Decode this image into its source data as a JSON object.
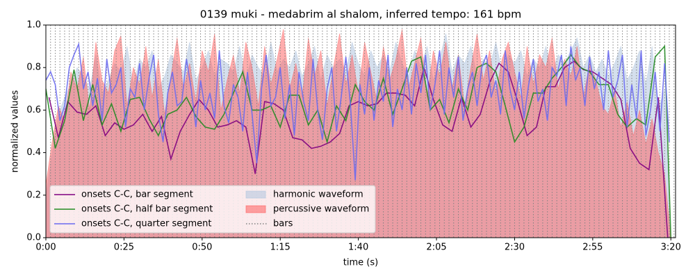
{
  "chart_data": {
    "type": "line",
    "title": "0139 muki - medabrim al shalom, inferred tempo: 161 bpm",
    "xlabel": "time (s)",
    "ylabel": "normalized values",
    "xlim": [
      0,
      201.5
    ],
    "ylim": [
      0,
      1
    ],
    "xticks": [
      {
        "value": 0,
        "label": "0:00"
      },
      {
        "value": 25,
        "label": "0:25"
      },
      {
        "value": 50,
        "label": "0:50"
      },
      {
        "value": 75,
        "label": "1:15"
      },
      {
        "value": 100,
        "label": "1:40"
      },
      {
        "value": 125,
        "label": "2:05"
      },
      {
        "value": 150,
        "label": "2:30"
      },
      {
        "value": 175,
        "label": "2:55"
      },
      {
        "value": 200,
        "label": "3:20"
      }
    ],
    "yticks": [
      {
        "value": 0,
        "label": "0.0"
      },
      0.2,
      0.4,
      0.6,
      0.8,
      {
        "value": 1,
        "label": "1.0"
      }
    ],
    "legend": "lower left",
    "series": [
      {
        "name": "onsets C-C, bar segment",
        "type": "line",
        "color": "#800080",
        "x": [
          1,
          4,
          7,
          10,
          13,
          16,
          19,
          22,
          25,
          28,
          31,
          34,
          37,
          40,
          43,
          46,
          49,
          52,
          55,
          58,
          61,
          64,
          67,
          70,
          73,
          76,
          79,
          82,
          85,
          88,
          91,
          94,
          97,
          100,
          103,
          106,
          109,
          112,
          115,
          118,
          121,
          124,
          127,
          130,
          133,
          136,
          139,
          142,
          145,
          148,
          151,
          154,
          157,
          160,
          163,
          166,
          169,
          172,
          175,
          178,
          181,
          184,
          187,
          190,
          193,
          196,
          199
        ],
        "values": [
          0.66,
          0.47,
          0.64,
          0.59,
          0.58,
          0.62,
          0.48,
          0.54,
          0.51,
          0.53,
          0.58,
          0.5,
          0.57,
          0.37,
          0.5,
          0.58,
          0.65,
          0.6,
          0.52,
          0.53,
          0.55,
          0.52,
          0.3,
          0.64,
          0.63,
          0.6,
          0.47,
          0.46,
          0.42,
          0.43,
          0.45,
          0.49,
          0.62,
          0.64,
          0.62,
          0.63,
          0.68,
          0.68,
          0.67,
          0.62,
          0.8,
          0.65,
          0.53,
          0.5,
          0.66,
          0.52,
          0.58,
          0.73,
          0.82,
          0.78,
          0.64,
          0.48,
          0.52,
          0.71,
          0.71,
          0.8,
          0.83,
          0.79,
          0.78,
          0.75,
          0.72,
          0.65,
          0.42,
          0.35,
          0.32,
          0.66,
          0.0
        ]
      },
      {
        "name": "onsets C-C, half bar segment",
        "type": "line",
        "color": "#228b22",
        "x": [
          0,
          3,
          6,
          9,
          12,
          15,
          18,
          21,
          24,
          27,
          30,
          33,
          36,
          39,
          42,
          45,
          48,
          51,
          54,
          57,
          60,
          63,
          66,
          69,
          72,
          75,
          78,
          81,
          84,
          87,
          90,
          93,
          96,
          99,
          102,
          105,
          108,
          111,
          114,
          117,
          120,
          123,
          126,
          129,
          132,
          135,
          138,
          141,
          144,
          147,
          150,
          153,
          156,
          159,
          162,
          165,
          168,
          171,
          174,
          177,
          180,
          183,
          186,
          189,
          192,
          195,
          198,
          200
        ],
        "values": [
          0.7,
          0.42,
          0.55,
          0.79,
          0.55,
          0.72,
          0.53,
          0.63,
          0.5,
          0.65,
          0.66,
          0.56,
          0.48,
          0.58,
          0.6,
          0.66,
          0.57,
          0.52,
          0.51,
          0.58,
          0.68,
          0.78,
          0.6,
          0.6,
          0.62,
          0.52,
          0.67,
          0.67,
          0.53,
          0.6,
          0.45,
          0.62,
          0.55,
          0.72,
          0.64,
          0.6,
          0.75,
          0.58,
          0.7,
          0.83,
          0.85,
          0.6,
          0.65,
          0.54,
          0.7,
          0.6,
          0.8,
          0.82,
          0.78,
          0.62,
          0.45,
          0.52,
          0.68,
          0.68,
          0.75,
          0.8,
          0.86,
          0.8,
          0.78,
          0.72,
          0.72,
          0.58,
          0.52,
          0.56,
          0.53,
          0.85,
          0.9,
          0.0
        ]
      },
      {
        "name": "onsets C-C, quarter segment",
        "type": "line",
        "color": "#6b6bf0",
        "x": [
          0,
          1.5,
          3,
          4.5,
          6,
          7.5,
          9,
          10.5,
          12,
          13.5,
          15,
          16.5,
          18,
          19.5,
          21,
          22.5,
          24,
          25.5,
          27,
          28.5,
          30,
          31.5,
          33,
          34.5,
          36,
          37.5,
          39,
          40.5,
          42,
          43.5,
          45,
          46.5,
          48,
          49.5,
          51,
          52.5,
          54,
          55.5,
          57,
          58.5,
          60,
          61.5,
          63,
          64.5,
          66,
          67.5,
          69,
          70.5,
          72,
          73.5,
          75,
          76.5,
          78,
          79.5,
          81,
          82.5,
          84,
          85.5,
          87,
          88.5,
          90,
          91.5,
          93,
          94.5,
          96,
          97.5,
          99,
          100.5,
          102,
          103.5,
          105,
          106.5,
          108,
          109.5,
          111,
          112.5,
          114,
          115.5,
          117,
          118.5,
          120,
          121.5,
          123,
          124.5,
          126,
          127.5,
          129,
          130.5,
          132,
          133.5,
          135,
          136.5,
          138,
          139.5,
          141,
          142.5,
          144,
          145.5,
          147,
          148.5,
          150,
          151.5,
          153,
          154.5,
          156,
          157.5,
          159,
          160.5,
          162,
          163.5,
          165,
          166.5,
          168,
          169.5,
          171,
          172.5,
          174,
          175.5,
          177,
          178.5,
          180,
          181.5,
          183,
          184.5,
          186,
          187.5,
          189,
          190.5,
          192,
          193.5,
          195,
          196.5,
          198,
          199.5
        ],
        "values": [
          0.74,
          0.78,
          0.72,
          0.55,
          0.62,
          0.8,
          0.86,
          0.91,
          0.7,
          0.78,
          0.62,
          0.75,
          0.55,
          0.84,
          0.68,
          0.72,
          0.8,
          0.52,
          0.7,
          0.66,
          0.82,
          0.6,
          0.75,
          0.86,
          0.58,
          0.45,
          0.68,
          0.78,
          0.62,
          0.64,
          0.84,
          0.7,
          0.52,
          0.74,
          0.6,
          0.68,
          0.56,
          0.88,
          0.62,
          0.54,
          0.72,
          0.66,
          0.5,
          0.78,
          0.58,
          0.35,
          0.7,
          0.86,
          0.62,
          0.66,
          0.8,
          0.56,
          0.72,
          0.48,
          0.78,
          0.64,
          0.55,
          0.84,
          0.6,
          0.46,
          0.7,
          0.8,
          0.5,
          0.66,
          0.85,
          0.62,
          0.27,
          0.72,
          0.58,
          0.8,
          0.55,
          0.74,
          0.64,
          0.86,
          0.52,
          0.7,
          0.6,
          0.8,
          0.58,
          0.82,
          0.68,
          0.86,
          0.6,
          0.72,
          0.88,
          0.58,
          0.8,
          0.66,
          0.85,
          0.55,
          0.7,
          0.78,
          0.62,
          0.8,
          0.86,
          0.66,
          0.74,
          0.58,
          0.88,
          0.7,
          0.6,
          0.78,
          0.56,
          0.72,
          0.84,
          0.64,
          0.7,
          0.55,
          0.8,
          0.76,
          0.86,
          0.62,
          0.9,
          0.74,
          0.8,
          0.62,
          0.85,
          0.7,
          0.78,
          0.6,
          0.88,
          0.66,
          0.74,
          0.86,
          0.52,
          0.72,
          0.56,
          0.88,
          0.48,
          0.6,
          0.78,
          0.5,
          0.82,
          0.45
        ]
      },
      {
        "name": "harmonic waveform",
        "type": "area",
        "color": "#b0c4de",
        "x": [
          0,
          2,
          4,
          6,
          8,
          10,
          12,
          14,
          16,
          18,
          20,
          22,
          24,
          26,
          28,
          30,
          32,
          34,
          36,
          38,
          40,
          42,
          44,
          46,
          48,
          50,
          52,
          54,
          56,
          58,
          60,
          62,
          64,
          66,
          68,
          70,
          72,
          74,
          76,
          78,
          80,
          82,
          84,
          86,
          88,
          90,
          92,
          94,
          96,
          98,
          100,
          102,
          104,
          106,
          108,
          110,
          112,
          114,
          116,
          118,
          120,
          122,
          124,
          126,
          128,
          130,
          132,
          134,
          136,
          138,
          140,
          142,
          144,
          146,
          148,
          150,
          152,
          154,
          156,
          158,
          160,
          162,
          164,
          166,
          168,
          170,
          172,
          174,
          176,
          178,
          180,
          182,
          184,
          186,
          188,
          190,
          192,
          194,
          196,
          198,
          200
        ],
        "values": [
          0.2,
          0.4,
          0.58,
          0.66,
          0.72,
          0.8,
          0.76,
          0.7,
          0.86,
          0.68,
          0.74,
          0.82,
          0.78,
          0.9,
          0.72,
          0.84,
          0.8,
          0.88,
          0.7,
          0.76,
          0.86,
          0.82,
          0.78,
          0.92,
          0.74,
          0.8,
          0.88,
          0.76,
          0.84,
          0.82,
          0.78,
          0.9,
          0.74,
          0.86,
          0.8,
          0.76,
          0.92,
          0.78,
          0.84,
          0.8,
          0.88,
          0.76,
          0.82,
          0.9,
          0.74,
          0.86,
          0.8,
          0.84,
          0.78,
          0.92,
          0.82,
          0.76,
          0.88,
          0.8,
          0.86,
          0.78,
          0.92,
          0.82,
          0.76,
          0.88,
          0.8,
          0.9,
          0.74,
          0.84,
          0.96,
          0.78,
          0.86,
          0.82,
          0.9,
          0.76,
          0.84,
          0.8,
          0.92,
          0.78,
          0.86,
          0.82,
          0.88,
          0.76,
          0.84,
          0.8,
          0.9,
          0.78,
          0.86,
          0.82,
          0.88,
          0.94,
          0.8,
          0.86,
          0.78,
          0.84,
          0.76,
          0.82,
          0.9,
          0.74,
          0.8,
          0.88,
          0.72,
          0.9,
          0.6,
          0.7,
          0.0
        ]
      },
      {
        "name": "percussive waveform",
        "type": "area",
        "color": "#ff5c5c",
        "x": [
          0,
          2,
          4,
          6,
          8,
          10,
          12,
          14,
          16,
          18,
          20,
          22,
          24,
          26,
          28,
          30,
          32,
          34,
          36,
          38,
          40,
          42,
          44,
          46,
          48,
          50,
          52,
          54,
          56,
          58,
          60,
          62,
          64,
          66,
          68,
          70,
          72,
          74,
          76,
          78,
          80,
          82,
          84,
          86,
          88,
          90,
          92,
          94,
          96,
          98,
          100,
          102,
          104,
          106,
          108,
          110,
          112,
          114,
          116,
          118,
          120,
          122,
          124,
          126,
          128,
          130,
          132,
          134,
          136,
          138,
          140,
          142,
          144,
          146,
          148,
          150,
          152,
          154,
          156,
          158,
          160,
          162,
          164,
          166,
          168,
          170,
          172,
          174,
          176,
          178,
          180,
          182,
          184,
          186,
          188,
          190,
          192,
          194,
          196,
          198,
          200
        ],
        "values": [
          0.25,
          0.45,
          0.62,
          0.55,
          0.78,
          0.7,
          0.85,
          0.6,
          0.92,
          0.74,
          0.68,
          0.88,
          0.95,
          0.62,
          0.8,
          0.72,
          0.9,
          0.66,
          0.84,
          0.58,
          0.76,
          0.94,
          0.7,
          0.82,
          0.64,
          0.88,
          0.78,
          0.96,
          0.6,
          0.74,
          0.86,
          0.68,
          0.92,
          0.8,
          0.62,
          0.9,
          0.72,
          0.84,
          0.98,
          0.7,
          0.82,
          0.66,
          0.94,
          0.76,
          0.88,
          0.62,
          0.8,
          0.96,
          0.72,
          0.86,
          0.68,
          0.92,
          0.78,
          0.64,
          0.9,
          0.74,
          0.84,
          0.98,
          0.7,
          0.82,
          0.94,
          0.66,
          0.88,
          0.76,
          0.92,
          0.7,
          0.86,
          0.62,
          0.8,
          0.96,
          0.74,
          0.88,
          0.68,
          0.84,
          0.92,
          0.78,
          0.66,
          0.9,
          0.72,
          0.86,
          0.8,
          0.94,
          0.7,
          0.84,
          0.76,
          0.9,
          0.66,
          0.82,
          0.74,
          0.62,
          0.58,
          0.7,
          0.52,
          0.64,
          0.48,
          0.6,
          0.44,
          0.56,
          0.4,
          0.3,
          0.0
        ]
      },
      {
        "name": "bars",
        "type": "vlines",
        "color": "#808080",
        "x": [
          0,
          1.5,
          3,
          4.5,
          6,
          7.5,
          9,
          10.5,
          12,
          13.5,
          15,
          16.5,
          18,
          19.5,
          21,
          22.5,
          24,
          25.5,
          27,
          28.5,
          30,
          31.5,
          33,
          34.5,
          36,
          37.5,
          39,
          40.5,
          42,
          43.5,
          45,
          46.5,
          48,
          49.5,
          51,
          52.5,
          54,
          55.5,
          57,
          58.5,
          60,
          61.5,
          63,
          64.5,
          66,
          67.5,
          69,
          70.5,
          72,
          73.5,
          75,
          76.5,
          78,
          79.5,
          81,
          82.5,
          84,
          85.5,
          87,
          88.5,
          90,
          91.5,
          93,
          94.5,
          96,
          97.5,
          99,
          100.5,
          102,
          103.5,
          105,
          106.5,
          108,
          109.5,
          111,
          112.5,
          114,
          115.5,
          117,
          118.5,
          120,
          121.5,
          123,
          124.5,
          126,
          127.5,
          129,
          130.5,
          132,
          133.5,
          135,
          136.5,
          138,
          139.5,
          141,
          142.5,
          144,
          145.5,
          147,
          148.5,
          150,
          151.5,
          153,
          154.5,
          156,
          157.5,
          159,
          160.5,
          162,
          163.5,
          165,
          166.5,
          168,
          169.5,
          171,
          172.5,
          174,
          175.5,
          177,
          178.5,
          180,
          181.5,
          183,
          184.5,
          186,
          187.5,
          189,
          190.5,
          192,
          193.5,
          195,
          196.5,
          198,
          199.5,
          201
        ]
      }
    ]
  }
}
